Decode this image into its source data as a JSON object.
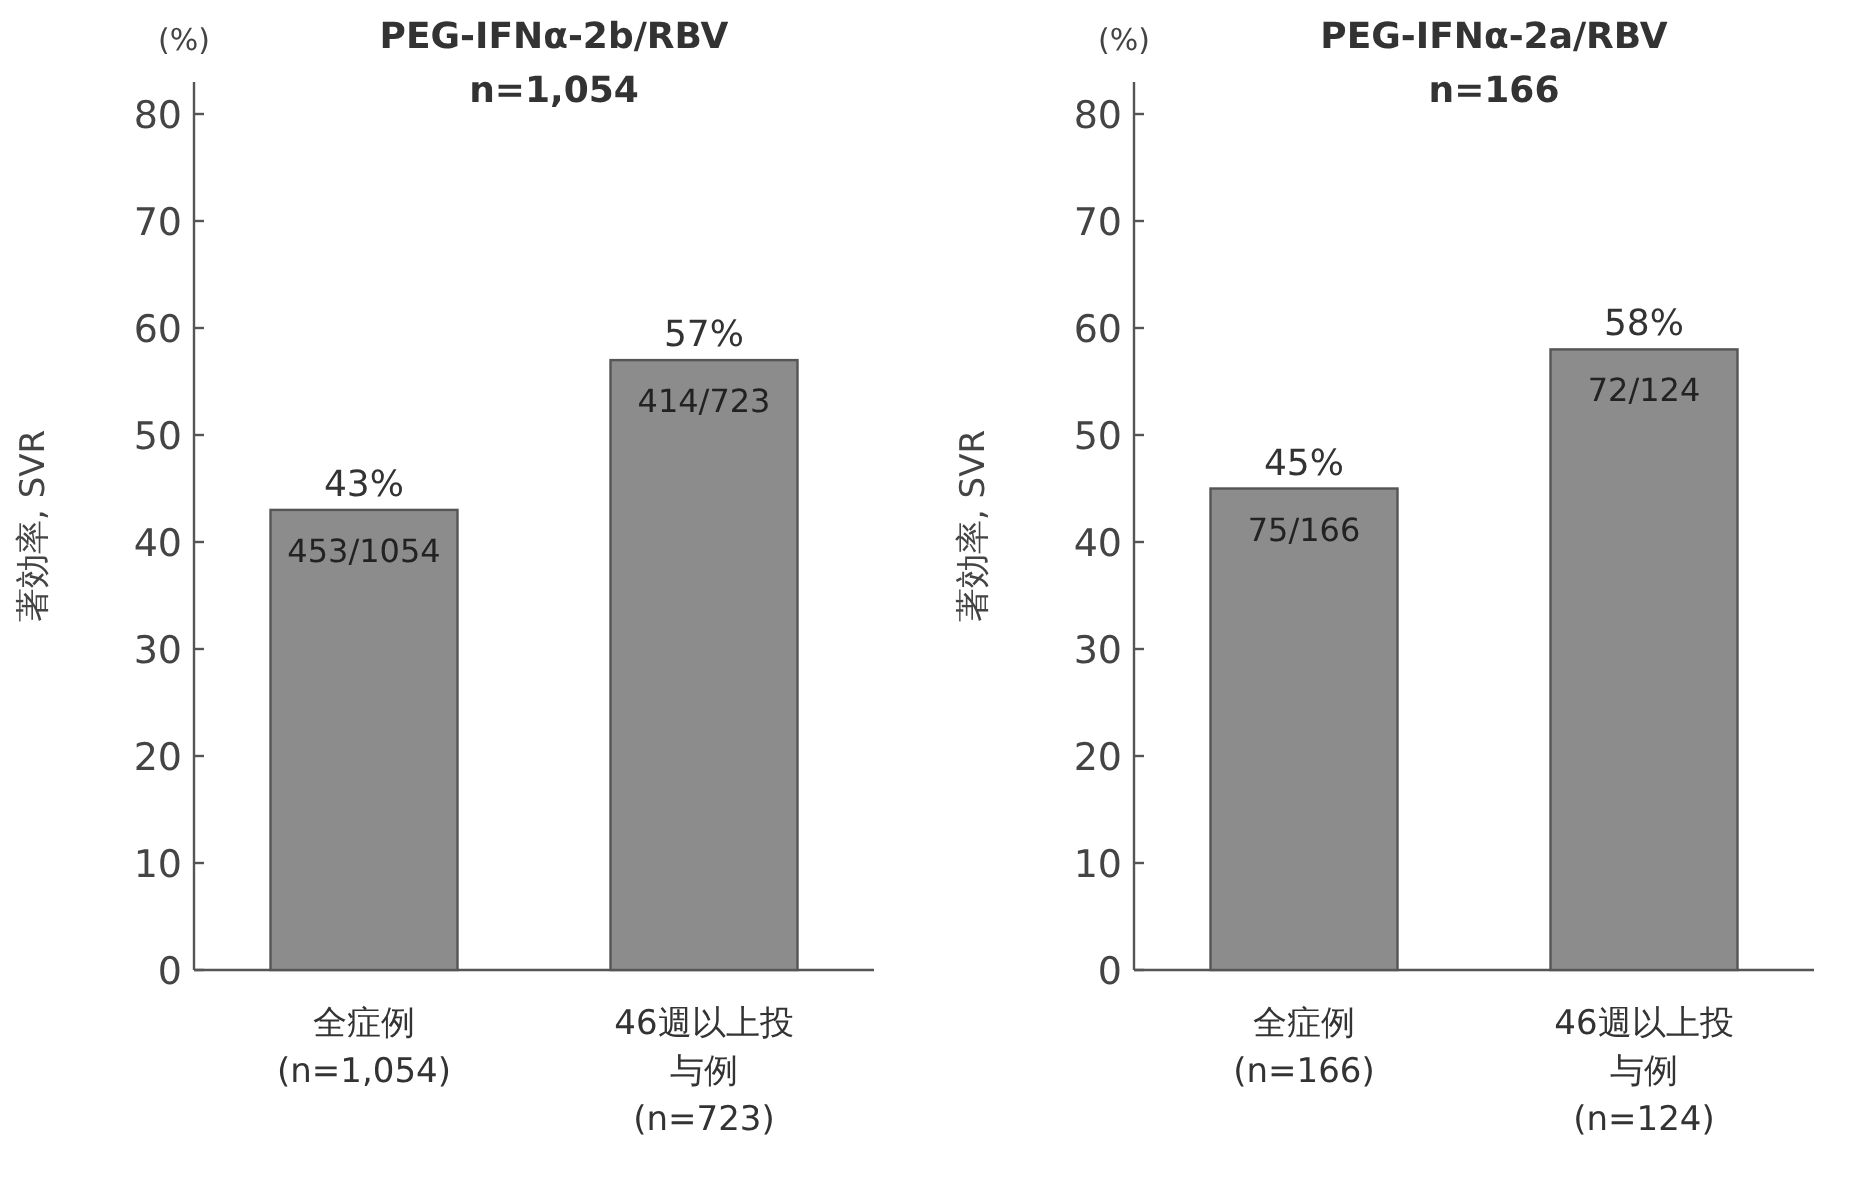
{
  "chart_data": [
    {
      "type": "bar",
      "title": "PEG-IFNα-2b/RBV",
      "subtitle": "n=1,054",
      "ylabel": "著効率, SVR",
      "categories": [
        "全症例\n(n=1,054)",
        "46週以上投与例\n(n=723)"
      ],
      "values": [
        43,
        57
      ],
      "value_labels": [
        "43%",
        "57%"
      ],
      "color": "#8c8c8c",
      "ylim": [
        0,
        83
      ],
      "yticks": [
        0,
        10,
        20,
        30,
        40,
        50,
        60,
        70,
        80
      ],
      "annotations": [
        "(%)",
        "453/1054",
        "414/723"
      ]
    },
    {
      "type": "bar",
      "title": "PEG-IFNα-2a/RBV",
      "subtitle": "n=166",
      "ylabel": "著効率, SVR",
      "categories": [
        "全症例\n(n=166)",
        "46週以上投与例\n(n=124)"
      ],
      "values": [
        45,
        58
      ],
      "value_labels": [
        "45%",
        "58%"
      ],
      "color": "#8c8c8c",
      "ylim": [
        0,
        83
      ],
      "yticks": [
        0,
        10,
        20,
        30,
        40,
        50,
        60,
        70,
        80
      ],
      "annotations": [
        "(%)",
        "75/166",
        "72/124"
      ]
    }
  ]
}
